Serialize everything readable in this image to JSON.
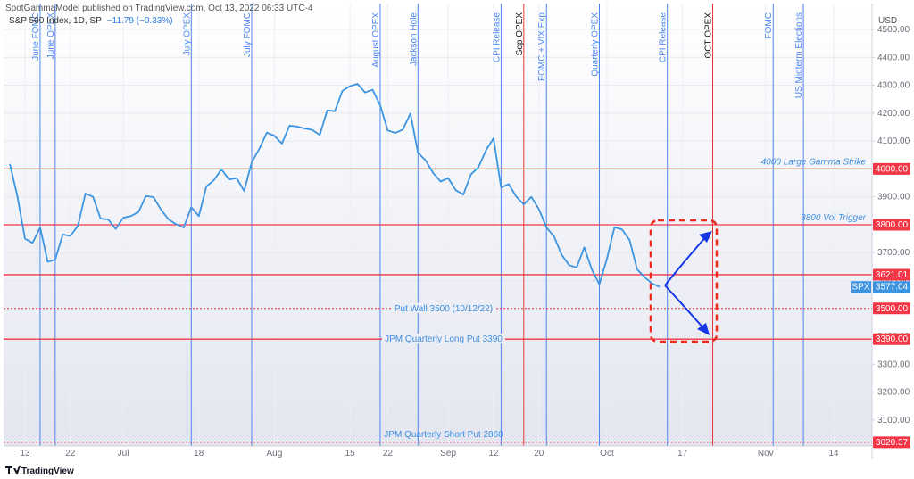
{
  "header": {
    "publisher": "SpotGammaModel published on TradingView.com, Oct 13, 2022 06:33 UTC-4",
    "symbol": "S&P 500 Index, 1D, SP",
    "change": "−11.79 (−0.33%)",
    "brand": "TradingView"
  },
  "chart_data": {
    "type": "line",
    "currency": "USD",
    "categories": [
      null,
      null,
      "13",
      null,
      null,
      null,
      null,
      null,
      "22",
      null,
      null,
      null,
      null,
      null,
      null,
      "Jul",
      null,
      null,
      null,
      null,
      null,
      null,
      null,
      null,
      null,
      "18",
      null,
      null,
      null,
      null,
      null,
      null,
      null,
      null,
      null,
      "Aug",
      null,
      null,
      null,
      null,
      null,
      null,
      null,
      null,
      null,
      "15",
      null,
      null,
      null,
      null,
      "22",
      null,
      null,
      null,
      null,
      null,
      null,
      null,
      "Sep",
      null,
      null,
      null,
      null,
      null,
      "12",
      null,
      null,
      null,
      null,
      null,
      "20",
      null,
      null,
      null,
      null,
      null,
      null,
      null,
      null,
      "Oct",
      null,
      null,
      null,
      null,
      null,
      null,
      null,
      null,
      null,
      "17",
      null,
      null,
      null,
      null,
      null,
      null,
      null,
      null,
      null,
      null,
      "Nov",
      null,
      null,
      null,
      null,
      null,
      null,
      null,
      null,
      "14",
      null,
      null,
      null,
      null
    ],
    "series": [
      {
        "name": "SPX",
        "color": "#3d94e0",
        "last_label": "3577.04",
        "values": [
          4018,
          3901,
          3750,
          3735,
          3790,
          3667,
          3675,
          3765,
          3760,
          3796,
          3912,
          3900,
          3822,
          3819,
          3785,
          3825,
          3831,
          3845,
          3903,
          3899,
          3854,
          3819,
          3802,
          3790,
          3863,
          3831,
          3937,
          3960,
          3999,
          3962,
          3967,
          3921,
          4024,
          4072,
          4130,
          4119,
          4091,
          4155,
          4152,
          4145,
          4140,
          4122,
          4210,
          4207,
          4280,
          4297,
          4305,
          4274,
          4284,
          4228,
          4138,
          4129,
          4141,
          4199,
          4058,
          4031,
          3986,
          3955,
          3967,
          3924,
          3908,
          3980,
          4006,
          4067,
          4110,
          3933,
          3946,
          3901,
          3873,
          3900,
          3856,
          3790,
          3758,
          3693,
          3655,
          3647,
          3719,
          3640,
          3586,
          3678,
          3791,
          3783,
          3745,
          3640,
          3612,
          3589,
          3577.04,
          null,
          null,
          null,
          null,
          null,
          null,
          null,
          null,
          null,
          null,
          null,
          null,
          null,
          null,
          null,
          null,
          null,
          null,
          null,
          null,
          null,
          null,
          null,
          null,
          null,
          null,
          null
        ]
      }
    ],
    "ylim": [
      3007,
      4580
    ],
    "yticks": [
      {
        "value": 3100,
        "label": "3100.00"
      },
      {
        "value": 3200,
        "label": "3200.00"
      },
      {
        "value": 3300,
        "label": "3300.00"
      },
      {
        "value": 3400,
        "label": "3400.00"
      },
      {
        "value": 3500,
        "label": "3500.00"
      },
      {
        "value": 3600,
        "label": "3600.00"
      },
      {
        "value": 3700,
        "label": "3700.00"
      },
      {
        "value": 3800,
        "label": "3800.00"
      },
      {
        "value": 3900,
        "label": "3900.00"
      },
      {
        "value": 4000,
        "label": "4000.00"
      },
      {
        "value": 4100,
        "label": "4100.00"
      },
      {
        "value": 4200,
        "label": "4200.00"
      },
      {
        "value": 4300,
        "label": "4300.00"
      },
      {
        "value": 4400,
        "label": "4400.00"
      },
      {
        "value": 4500,
        "label": "4500.00"
      }
    ],
    "grid": true,
    "events": [
      {
        "label": "June FOMC",
        "at": 4,
        "color": "#4a86f0"
      },
      {
        "label": "June OPEX",
        "at": 6,
        "color": "#4a86f0"
      },
      {
        "label": "July OPEX",
        "at": 24,
        "color": "#4a86f0"
      },
      {
        "label": "July FOMC",
        "at": 32,
        "color": "#4a86f0"
      },
      {
        "label": "August OPEX",
        "at": 49,
        "color": "#4a86f0"
      },
      {
        "label": "Jackson Hole",
        "at": 54,
        "color": "#4a86f0"
      },
      {
        "label": "CPI Release",
        "at": 65,
        "color": "#4a86f0"
      },
      {
        "label": "Sep OPEX",
        "at": 68,
        "color": "#e53935"
      },
      {
        "label": "FOMC + VIX Exp",
        "at": 71,
        "color": "#4a86f0"
      },
      {
        "label": "Quarterly OPEX",
        "at": 78,
        "color": "#4a86f0"
      },
      {
        "label": "CPI Release",
        "at": 87,
        "color": "#4a86f0"
      },
      {
        "label": "OCT OPEX",
        "at": 93,
        "color": "#e53935"
      },
      {
        "label": "FOMC",
        "at": 101,
        "color": "#4a86f0"
      },
      {
        "label": "US Midterm Elections",
        "at": 105,
        "color": "#4a86f0"
      }
    ],
    "levels": [
      {
        "value": 4000,
        "label": "4000 Large Gamma Strike",
        "tag": "4000.00",
        "style": "solid"
      },
      {
        "value": 3800,
        "label": "3800 Vol Trigger",
        "tag": "3800.00",
        "style": "solid"
      },
      {
        "value": 3621.01,
        "tag": "3621.01",
        "style": "solid"
      },
      {
        "value": 3500,
        "label": "Put Wall 3500 (10/12/22)",
        "tag": "3500.00",
        "style": "dotted"
      },
      {
        "value": 3390,
        "label": "JPM Quarterly Long Put 3390",
        "tag": "3390.00",
        "style": "solid"
      },
      {
        "value": 3020.37,
        "label": "JPM Quarterly Short Put 2860",
        "tag": "3020.37",
        "style": "dotted"
      }
    ],
    "level_color": "#f23645"
  }
}
